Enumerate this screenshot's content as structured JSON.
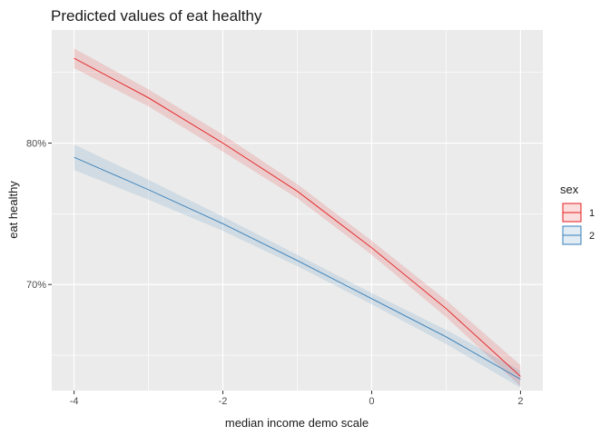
{
  "chart_data": {
    "type": "line",
    "title": "Predicted values of eat healthy",
    "xlabel": "median income demo scale",
    "ylabel": "eat healthy",
    "x_ticks": [
      -4,
      -2,
      0,
      2
    ],
    "y_ticks": [
      70,
      80
    ],
    "y_tick_labels": [
      "70%",
      "80%"
    ],
    "xlim": [
      -4.3,
      2.3
    ],
    "ylim": [
      62.5,
      88.0
    ],
    "grid": true,
    "legend": {
      "title": "sex",
      "position": "right"
    },
    "series": [
      {
        "name": "1",
        "color": "#e41a1c",
        "x": [
          -4,
          -3,
          -2,
          -1,
          0,
          1,
          2
        ],
        "y": [
          86.0,
          83.2,
          80.0,
          76.6,
          72.6,
          68.3,
          63.5
        ],
        "lower": [
          85.3,
          82.6,
          79.4,
          76.1,
          72.1,
          67.7,
          62.8
        ],
        "upper": [
          86.7,
          83.8,
          80.6,
          77.1,
          73.1,
          68.9,
          64.3
        ]
      },
      {
        "name": "2",
        "color": "#377eb8",
        "x": [
          -4,
          -3,
          -2,
          -1,
          0,
          1,
          2
        ],
        "y": [
          79.0,
          76.7,
          74.3,
          71.7,
          69.0,
          66.3,
          63.3
        ],
        "lower": [
          78.1,
          76.0,
          73.8,
          71.3,
          68.6,
          65.8,
          62.7
        ],
        "upper": [
          79.9,
          77.4,
          74.8,
          72.1,
          69.4,
          66.8,
          63.9
        ]
      }
    ]
  }
}
